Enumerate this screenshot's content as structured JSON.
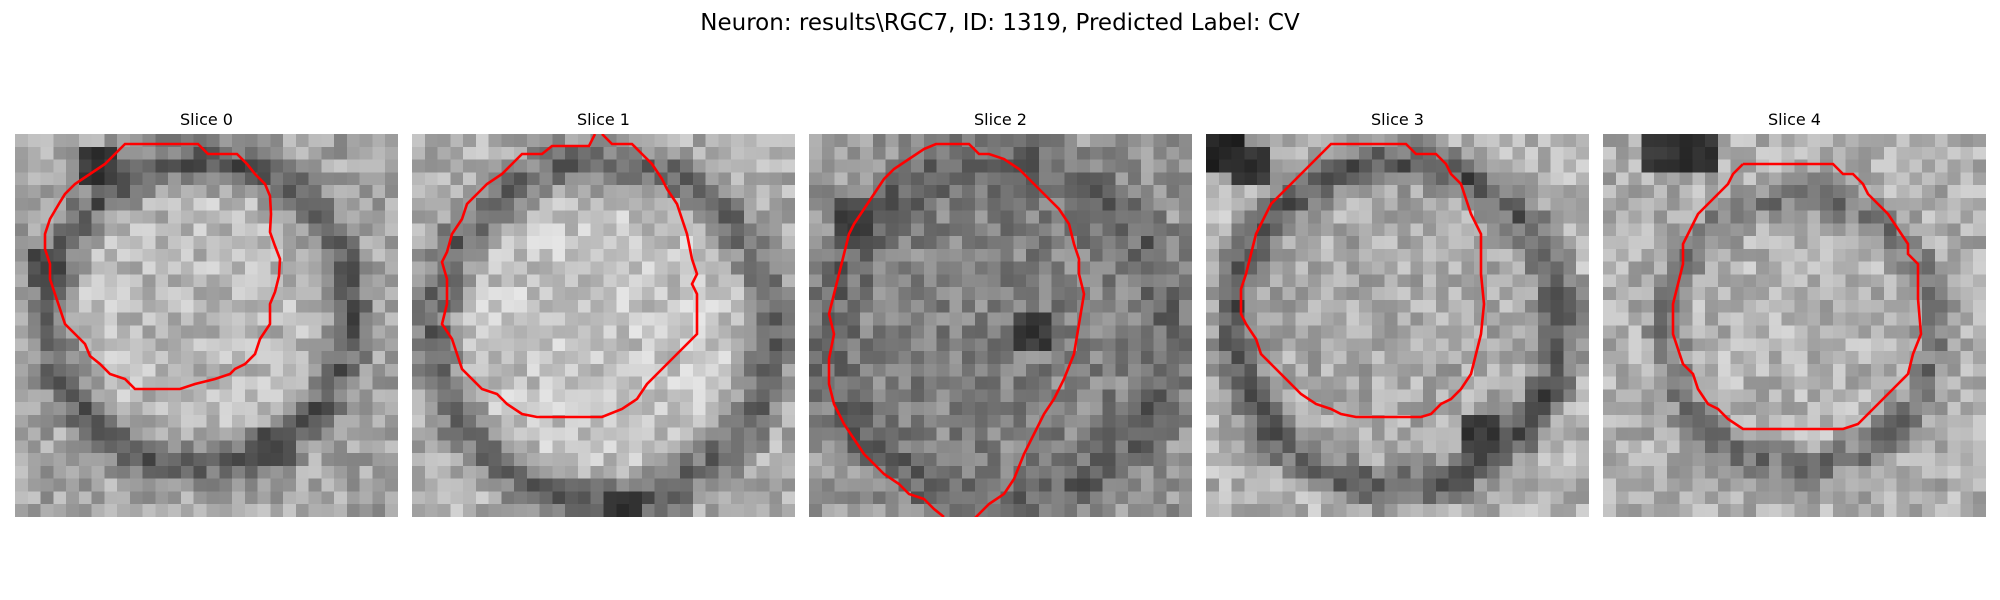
{
  "figure": {
    "title": "Neuron: results\\RGC7, ID: 1319, Predicted Label: CV"
  },
  "colors": {
    "contour": "#ff0000",
    "background": "#ffffff"
  },
  "panels": [
    {
      "title": "Slice 0"
    },
    {
      "title": "Slice 1"
    },
    {
      "title": "Slice 2"
    },
    {
      "title": "Slice 3"
    },
    {
      "title": "Slice 4"
    }
  ]
}
